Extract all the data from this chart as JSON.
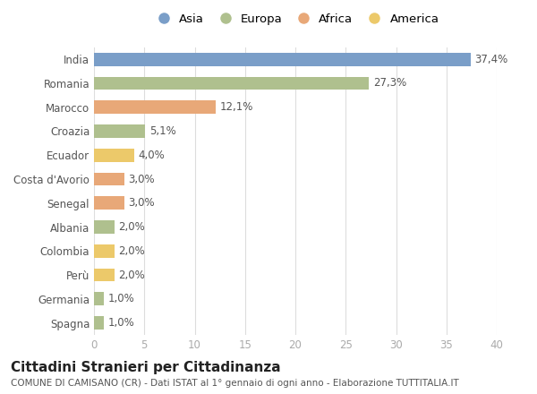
{
  "categories": [
    "India",
    "Romania",
    "Marocco",
    "Croazia",
    "Ecuador",
    "Costa d'Avorio",
    "Senegal",
    "Albania",
    "Colombia",
    "Perù",
    "Germania",
    "Spagna"
  ],
  "values": [
    37.4,
    27.3,
    12.1,
    5.1,
    4.0,
    3.0,
    3.0,
    2.0,
    2.0,
    2.0,
    1.0,
    1.0
  ],
  "labels": [
    "37,4%",
    "27,3%",
    "12,1%",
    "5,1%",
    "4,0%",
    "3,0%",
    "3,0%",
    "2,0%",
    "2,0%",
    "2,0%",
    "1,0%",
    "1,0%"
  ],
  "continents": [
    "Asia",
    "Europa",
    "Africa",
    "Europa",
    "America",
    "Africa",
    "Africa",
    "Europa",
    "America",
    "America",
    "Europa",
    "Europa"
  ],
  "colors": {
    "Asia": "#7a9ec8",
    "Europa": "#afc08e",
    "Africa": "#e8a878",
    "America": "#ecc96a"
  },
  "legend_order": [
    "Asia",
    "Europa",
    "Africa",
    "America"
  ],
  "xlim": [
    0,
    40
  ],
  "xticks": [
    0,
    5,
    10,
    15,
    20,
    25,
    30,
    35,
    40
  ],
  "title": "Cittadini Stranieri per Cittadinanza",
  "subtitle": "COMUNE DI CAMISANO (CR) - Dati ISTAT al 1° gennaio di ogni anno - Elaborazione TUTTITALIA.IT",
  "bg_color": "#ffffff",
  "grid_color": "#dddddd",
  "bar_height": 0.55,
  "label_fontsize": 8.5,
  "title_fontsize": 11,
  "subtitle_fontsize": 7.5,
  "ytick_fontsize": 8.5,
  "xtick_fontsize": 8.5,
  "legend_fontsize": 9.5
}
